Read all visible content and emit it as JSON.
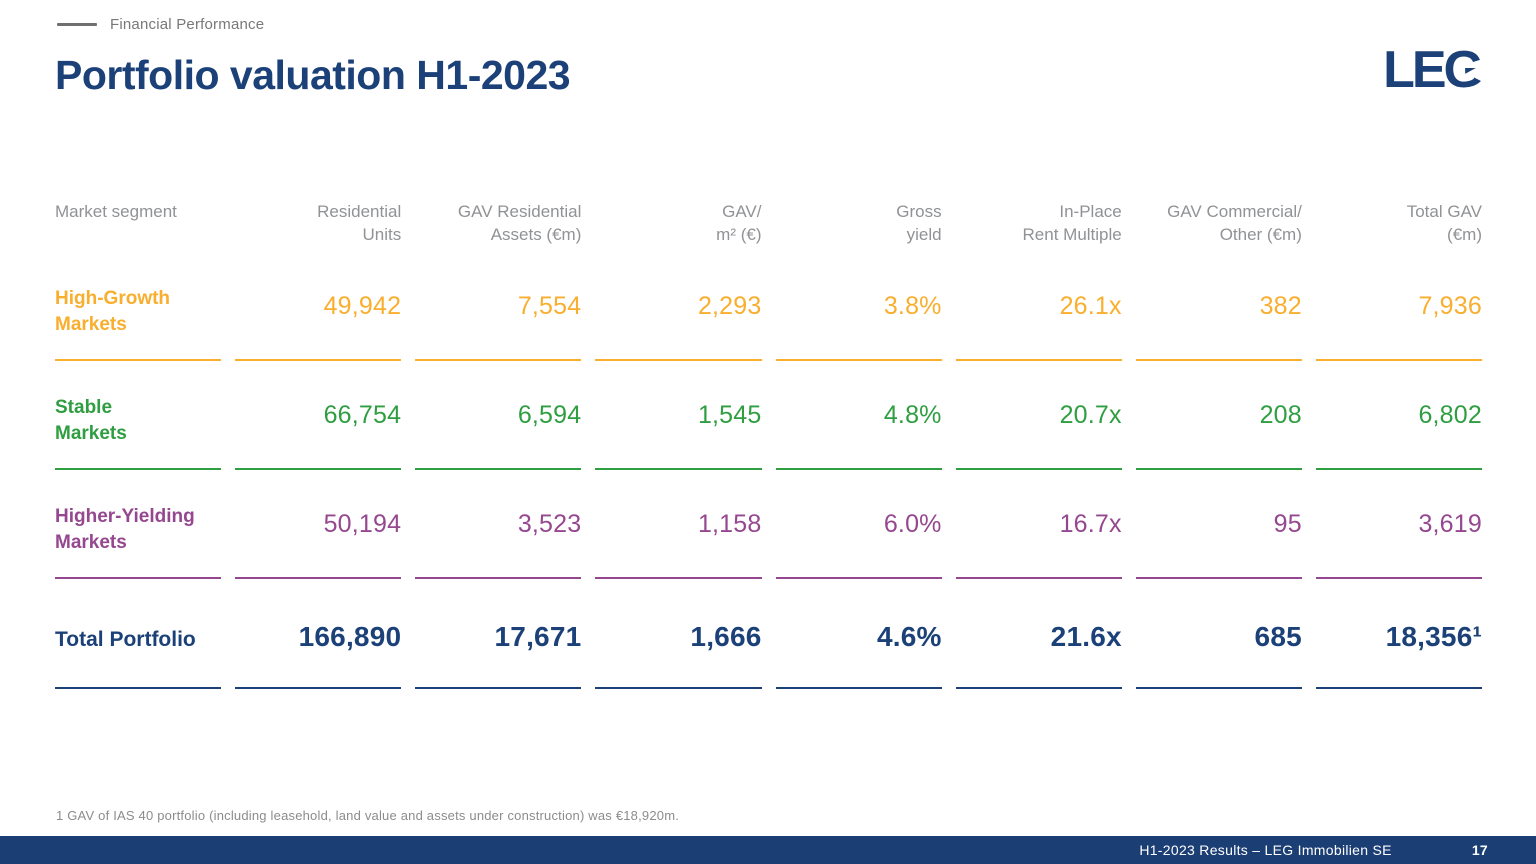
{
  "eyebrow": "Financial Performance",
  "title": "Portfolio valuation H1-2023",
  "logo_text": "LEG",
  "colors": {
    "brand_blue": "#1B4178",
    "footer_blue": "#1B3E74",
    "high_growth_orange": "#F9AE2E",
    "stable_green": "#2F9E41",
    "higher_yielding_purple": "#95478F",
    "header_gray": "#909295"
  },
  "table": {
    "columns": [
      {
        "id": "market-segment",
        "label": "Market segment",
        "align": "left"
      },
      {
        "id": "residential-units",
        "label": "Residential\nUnits"
      },
      {
        "id": "gav-residential-assets",
        "label": "GAV Residential\nAssets (€m)"
      },
      {
        "id": "gav-per-m2",
        "label": "GAV/\nm² (€)"
      },
      {
        "id": "gross-yield",
        "label": "Gross\nyield"
      },
      {
        "id": "in-place-rent-multiple",
        "label": "In-Place\nRent Multiple"
      },
      {
        "id": "gav-commercial-other",
        "label": "GAV Commercial/\nOther (€m)"
      },
      {
        "id": "total-gav",
        "label": "Total GAV\n(€m)"
      }
    ],
    "rows": [
      {
        "segment": "High-Growth\nMarkets",
        "color": "#F9AE2E",
        "total": false,
        "values": [
          "49,942",
          "7,554",
          "2,293",
          "3.8%",
          "26.1x",
          "382",
          "7,936"
        ]
      },
      {
        "segment": "Stable\nMarkets",
        "color": "#2F9E41",
        "total": false,
        "values": [
          "66,754",
          "6,594",
          "1,545",
          "4.8%",
          "20.7x",
          "208",
          "6,802"
        ]
      },
      {
        "segment": "Higher-Yielding\nMarkets",
        "color": "#95478F",
        "total": false,
        "values": [
          "50,194",
          "3,523",
          "1,158",
          "6.0%",
          "16.7x",
          "95",
          "3,619"
        ]
      },
      {
        "segment": "Total Portfolio",
        "color": "#1B4178",
        "total": true,
        "values": [
          "166,890",
          "17,671",
          "1,666",
          "4.6%",
          "21.6x",
          "685",
          "18,356¹"
        ]
      }
    ]
  },
  "footnote": "1 GAV of IAS 40 portfolio (including leasehold, land value and assets under construction) was €18,920m.",
  "footer": {
    "label": "H1-2023 Results – LEG Immobilien SE",
    "page": "17"
  }
}
